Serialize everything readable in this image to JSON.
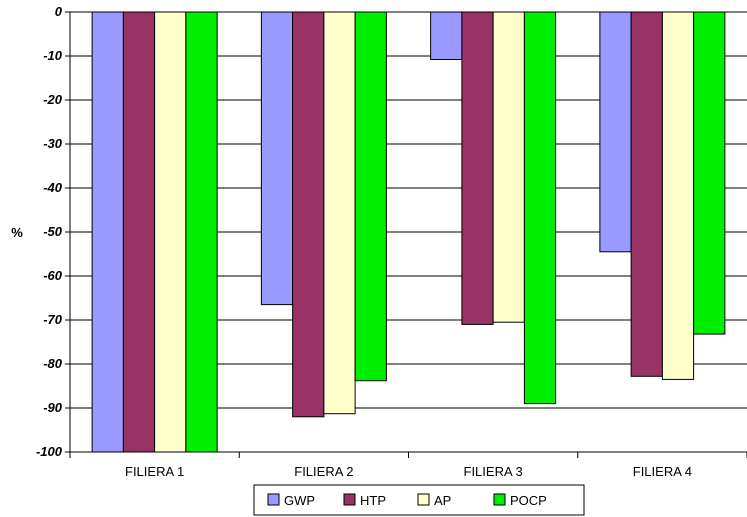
{
  "chart_data": {
    "type": "bar",
    "title": "",
    "xlabel": "",
    "ylabel": "%",
    "ylim": [
      -100,
      0
    ],
    "y_ticks": [
      0,
      -10,
      -20,
      -30,
      -40,
      -50,
      -60,
      -70,
      -80,
      -90,
      -100
    ],
    "y_tick_labels": [
      "0",
      "-10",
      "-20",
      "-30",
      "-40",
      "-50",
      "-60",
      "-70",
      "-80",
      "-90",
      "-100"
    ],
    "grid": true,
    "legend_position": "bottom",
    "categories": [
      "FILIERA 1",
      "FILIERA 2",
      "FILIERA 3",
      "FILIERA 4"
    ],
    "series": [
      {
        "name": "GWP",
        "color": "#9999ff",
        "values": [
          -100,
          -66.5,
          -10.8,
          -54.5
        ]
      },
      {
        "name": "HTP",
        "color": "#993366",
        "values": [
          -100,
          -92,
          -71,
          -82.8
        ]
      },
      {
        "name": "AP",
        "color": "#ffffcc",
        "values": [
          -100,
          -91.3,
          -70.5,
          -83.5
        ]
      },
      {
        "name": "POCP",
        "color": "#00ee00",
        "values": [
          -100,
          -83.8,
          -89,
          -73.2
        ]
      }
    ]
  }
}
